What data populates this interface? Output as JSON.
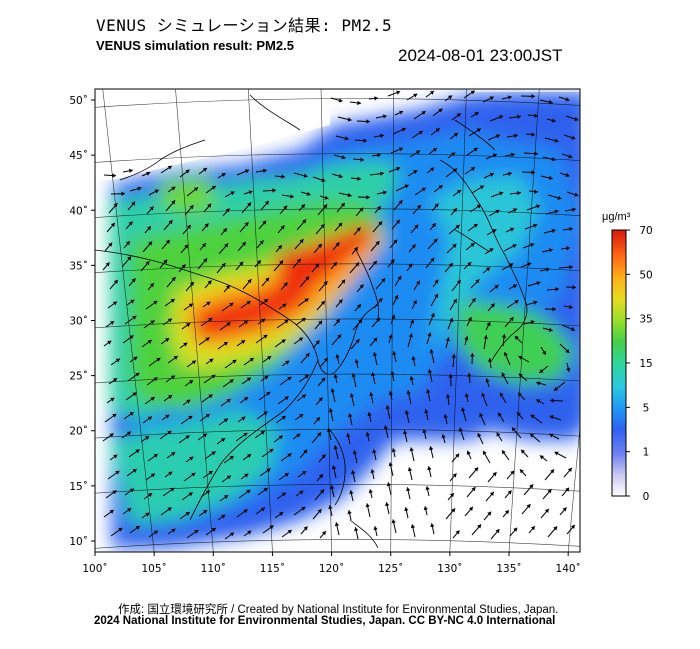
{
  "title_jp": "VENUS シミュレーション結果: PM2.5",
  "title_en": "VENUS simulation result: PM2.5",
  "timestamp": "2024-08-01 23:00JST",
  "map": {
    "lon_range": [
      100,
      141
    ],
    "lat_range": [
      9,
      51
    ],
    "lon_ticks": [
      {
        "value": 100,
        "label": "100˚"
      },
      {
        "value": 105,
        "label": "105˚"
      },
      {
        "value": 110,
        "label": "110˚"
      },
      {
        "value": 115,
        "label": "115˚"
      },
      {
        "value": 120,
        "label": "120˚"
      },
      {
        "value": 125,
        "label": "125˚"
      },
      {
        "value": 130,
        "label": "130˚"
      },
      {
        "value": 135,
        "label": "135˚"
      },
      {
        "value": 140,
        "label": "140˚"
      }
    ],
    "lat_ticks": [
      {
        "value": 10,
        "label": "10˚"
      },
      {
        "value": 15,
        "label": "15˚"
      },
      {
        "value": 20,
        "label": "20˚"
      },
      {
        "value": 25,
        "label": "25˚"
      },
      {
        "value": 30,
        "label": "30˚"
      },
      {
        "value": 35,
        "label": "35˚"
      },
      {
        "value": 40,
        "label": "40˚"
      },
      {
        "value": 45,
        "label": "45˚"
      },
      {
        "value": 50,
        "label": "50˚"
      }
    ]
  },
  "colorbar": {
    "unit": "μg/m³",
    "ticks": [
      {
        "value": 0,
        "label": "0"
      },
      {
        "value": 1,
        "label": "1"
      },
      {
        "value": 5,
        "label": "5"
      },
      {
        "value": 15,
        "label": "15"
      },
      {
        "value": 35,
        "label": "35"
      },
      {
        "value": 50,
        "label": "50"
      },
      {
        "value": 70,
        "label": "70"
      }
    ],
    "colors": [
      "#ffffff",
      "#d6d6f5",
      "#8a8ef0",
      "#3a5cf2",
      "#1e8ef5",
      "#2bc6e6",
      "#2fd7a0",
      "#41d04a",
      "#88dc2c",
      "#d2e126",
      "#ffd21c",
      "#ff9a14",
      "#ff5812",
      "#f0240f",
      "#d8180c"
    ]
  },
  "credits": {
    "line1": "作成: 国立環境研究所 / Created by National Institute for Environmental Studies, Japan.",
    "line2": "2024 National Institute for Environmental Studies, Japan. CC BY-NC 4.0 International"
  }
}
